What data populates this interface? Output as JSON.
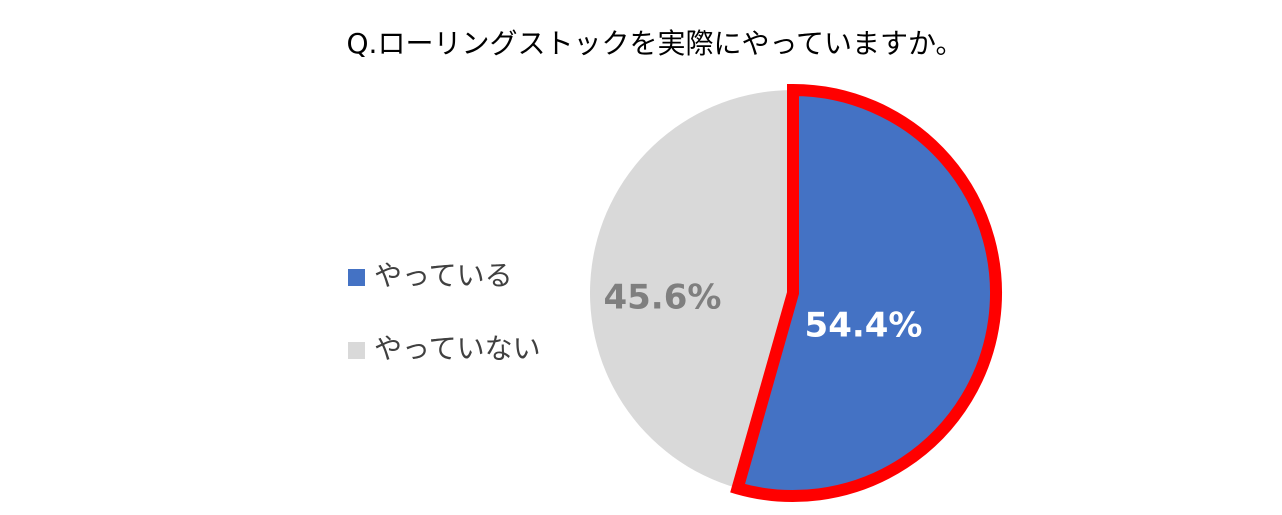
{
  "chart_data": {
    "type": "pie",
    "title": "Q.ローリングストックを実際にやっていますか。",
    "categories": [
      "やっている",
      "やっていない"
    ],
    "values": [
      54.4,
      45.6
    ],
    "value_labels": [
      "54.4%",
      "45.6%"
    ],
    "colors": [
      "#4472c4",
      "#d9d9d9"
    ],
    "label_colors": [
      "#ffffff",
      "#7f7f7f"
    ],
    "legend": "left"
  }
}
